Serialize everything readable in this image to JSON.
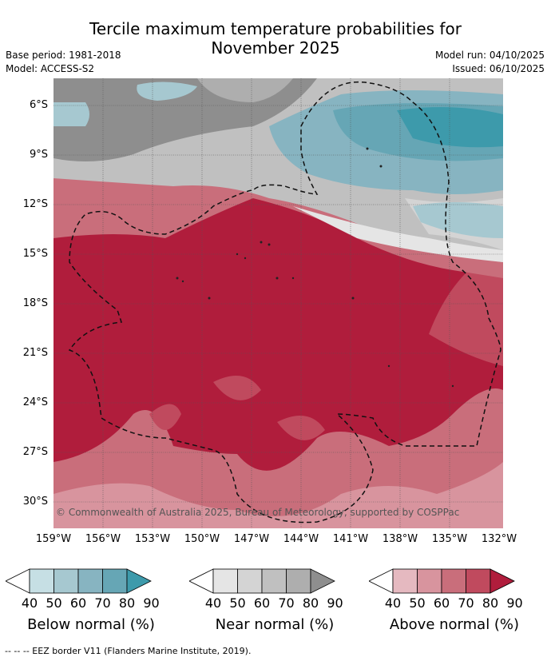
{
  "title": {
    "line1": "Tercile maximum temperature probabilities for",
    "line2": "November 2025"
  },
  "meta": {
    "base_period": "Base period: 1981-2018",
    "model": "Model: ACCESS-S2",
    "model_run": "Model run: 04/10/2025",
    "issued": "Issued: 06/10/2025"
  },
  "map": {
    "latitudes": [
      "6°S",
      "9°S",
      "12°S",
      "15°S",
      "18°S",
      "21°S",
      "24°S",
      "27°S",
      "30°S"
    ],
    "longitudes": [
      "159°W",
      "156°W",
      "153°W",
      "150°W",
      "147°W",
      "144°W",
      "141°W",
      "138°W",
      "135°W",
      "132°W"
    ],
    "copyright": "© Commonwealth of Australia 2025, Bureau of Meteorology, supported by COSPPac"
  },
  "colorbars": [
    {
      "label": "Below normal (%)",
      "ticks": [
        "40",
        "50",
        "60",
        "70",
        "80",
        "90"
      ],
      "colors": [
        "#ffffff",
        "#c6dfe4",
        "#a6c8d0",
        "#87b4c1",
        "#66a6b5",
        "#3d9aab"
      ]
    },
    {
      "label": "Near normal (%)",
      "ticks": [
        "40",
        "50",
        "60",
        "70",
        "80",
        "90"
      ],
      "colors": [
        "#ffffff",
        "#e5e5e5",
        "#d4d4d4",
        "#c0c0c0",
        "#aeaeae",
        "#8e8e8e"
      ]
    },
    {
      "label": "Above normal (%)",
      "ticks": [
        "40",
        "50",
        "60",
        "70",
        "80",
        "90"
      ],
      "colors": [
        "#ffffff",
        "#e5b9c0",
        "#d8949e",
        "#c96e7b",
        "#c04a5e",
        "#b01d3c"
      ]
    }
  ],
  "footer": "--  --  -- EEZ border V11 (Flanders Marine Institute, 2019)."
}
